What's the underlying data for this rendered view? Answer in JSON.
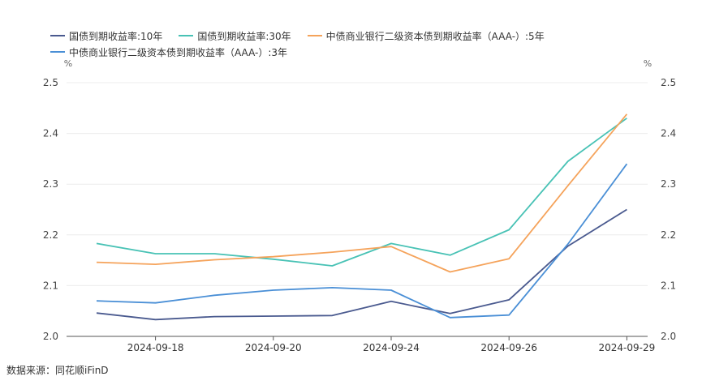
{
  "chart_data": {
    "type": "line",
    "x": [
      "2024-09-17",
      "2024-09-18",
      "2024-09-19",
      "2024-09-20",
      "2024-09-23",
      "2024-09-24",
      "2024-09-25",
      "2024-09-26",
      "2024-09-27",
      "2024-09-29"
    ],
    "x_tick_labels": [
      "2024-09-18",
      "2024-09-20",
      "2024-09-24",
      "2024-09-26",
      "2024-09-29"
    ],
    "y_ticks": [
      "2.0",
      "2.1",
      "2.2",
      "2.3",
      "2.4",
      "2.5"
    ],
    "ylim": [
      2.0,
      2.5
    ],
    "ylabel_left": "%",
    "ylabel_right": "%",
    "grid": "horizontal",
    "legend_position": "top-left",
    "series": [
      {
        "name": "国债到期收益率:10年",
        "color": "#4a5a8f",
        "values": [
          2.046,
          2.033,
          2.039,
          2.04,
          2.041,
          2.069,
          2.045,
          2.072,
          2.178,
          2.25
        ]
      },
      {
        "name": "国债到期收益率:30年",
        "color": "#48c2b5",
        "values": [
          2.183,
          2.163,
          2.163,
          2.152,
          2.139,
          2.183,
          2.16,
          2.21,
          2.345,
          2.43
        ]
      },
      {
        "name": "中债商业银行二级资本债到期收益率（AAA-）:5年",
        "color": "#f5a35b",
        "values": [
          2.146,
          2.142,
          2.151,
          2.157,
          2.166,
          2.177,
          2.127,
          2.153,
          2.297,
          2.438
        ]
      },
      {
        "name": "中债商业银行二级资本债到期收益率（AAA-）:3年",
        "color": "#4a8fd6",
        "values": [
          2.07,
          2.066,
          2.081,
          2.091,
          2.096,
          2.091,
          2.037,
          2.042,
          2.182,
          2.34
        ]
      }
    ]
  },
  "source": "数据来源：同花顺iFinD"
}
